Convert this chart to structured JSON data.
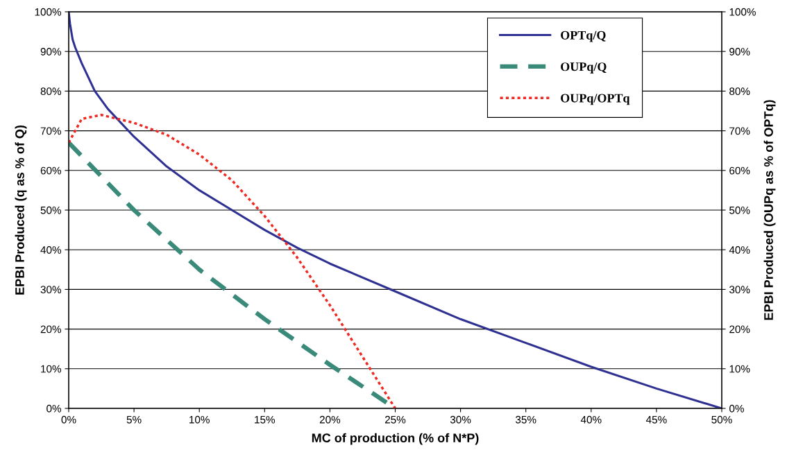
{
  "chart_data": {
    "type": "line",
    "xlabel": "MC of production (% of N*P)",
    "ylabel": "EPBI Produced (q as % of Q)",
    "y2label": "EPBI Produced (OUPq as % of OPTq)",
    "xlim": [
      0,
      50
    ],
    "ylim": [
      0,
      100
    ],
    "y2lim": [
      0,
      100
    ],
    "xticks": [
      {
        "value": 0,
        "label": "0%"
      },
      {
        "value": 5,
        "label": "5%"
      },
      {
        "value": 10,
        "label": "10%"
      },
      {
        "value": 15,
        "label": "15%"
      },
      {
        "value": 20,
        "label": "20%"
      },
      {
        "value": 25,
        "label": "25%"
      },
      {
        "value": 30,
        "label": "30%"
      },
      {
        "value": 35,
        "label": "35%"
      },
      {
        "value": 40,
        "label": "40%"
      },
      {
        "value": 45,
        "label": "45%"
      },
      {
        "value": 50,
        "label": "50%"
      }
    ],
    "yticks": [
      {
        "value": 0,
        "label": "0%"
      },
      {
        "value": 10,
        "label": "10%"
      },
      {
        "value": 20,
        "label": "20%"
      },
      {
        "value": 30,
        "label": "30%"
      },
      {
        "value": 40,
        "label": "40%"
      },
      {
        "value": 50,
        "label": "50%"
      },
      {
        "value": 60,
        "label": "60%"
      },
      {
        "value": 70,
        "label": "70%"
      },
      {
        "value": 80,
        "label": "80%"
      },
      {
        "value": 90,
        "label": "90%"
      },
      {
        "value": 100,
        "label": "100%"
      }
    ],
    "y2ticks": [
      {
        "value": 0,
        "label": "0%"
      },
      {
        "value": 10,
        "label": "10%"
      },
      {
        "value": 20,
        "label": "20%"
      },
      {
        "value": 30,
        "label": "30%"
      },
      {
        "value": 40,
        "label": "40%"
      },
      {
        "value": 50,
        "label": "50%"
      },
      {
        "value": 60,
        "label": "60%"
      },
      {
        "value": 70,
        "label": "70%"
      },
      {
        "value": 80,
        "label": "80%"
      },
      {
        "value": 90,
        "label": "90%"
      },
      {
        "value": 100,
        "label": "100%"
      }
    ],
    "grid": "y",
    "legend": "top right",
    "series": [
      {
        "name": "OPTq/Q",
        "color": "#2e3192",
        "line_style": "solid",
        "x": [
          0,
          0.1,
          0.3,
          0.5,
          1,
          2,
          3,
          5,
          7.5,
          10,
          12.5,
          15,
          17.5,
          20,
          25,
          30,
          35,
          40,
          45,
          50
        ],
        "values": [
          100,
          97,
          93,
          91,
          87,
          80,
          75.5,
          68.5,
          61,
          55,
          50,
          45,
          40.5,
          36.5,
          29.5,
          22.5,
          16.5,
          10.5,
          5,
          0
        ]
      },
      {
        "name": "OUPq/Q",
        "color": "#3a8a7a",
        "line_style": "dashed",
        "x": [
          0,
          5,
          10,
          15,
          20,
          25
        ],
        "values": [
          67,
          50,
          35,
          22.5,
          11,
          0
        ]
      },
      {
        "name": "OUPq/OPTq",
        "color": "#ee2a24",
        "line_style": "dotted",
        "axis": "y2",
        "x": [
          0,
          1,
          2.5,
          5,
          7.5,
          10,
          12.5,
          15,
          17.5,
          20,
          22.5,
          25
        ],
        "values": [
          67,
          73,
          74,
          72,
          69,
          64,
          57.5,
          48.5,
          38,
          26,
          13,
          0
        ]
      }
    ]
  }
}
